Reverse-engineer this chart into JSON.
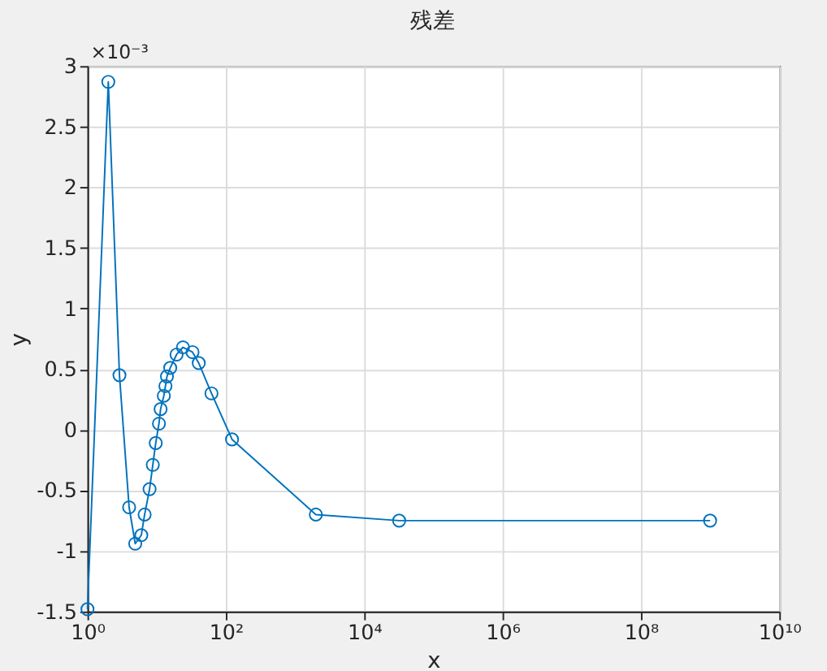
{
  "chart_data": {
    "type": "line",
    "title": "残差",
    "xlabel": "x",
    "ylabel": "y",
    "log": "x",
    "x": [
      1,
      2,
      2.9,
      4,
      4.9,
      6,
      6.7,
      7.9,
      8.8,
      9.7,
      10.8,
      11.4,
      12.7,
      13.4,
      14.1,
      15.7,
      19.4,
      24,
      33,
      40.6,
      62,
      123,
      2000,
      32000,
      1000000000
    ],
    "series": [
      {
        "color": "#0072bd",
        "values": [
          -1.48,
          2.87,
          0.45,
          -0.64,
          -0.94,
          -0.87,
          -0.7,
          -0.49,
          -0.29,
          -0.11,
          0.05,
          0.17,
          0.28,
          0.36,
          0.44,
          0.51,
          0.62,
          0.68,
          0.64,
          0.55,
          0.3,
          -0.08,
          -0.7,
          -0.75,
          -0.75
        ]
      }
    ],
    "xlim": [
      1,
      10000000000
    ],
    "xticks": [
      {
        "value": 1,
        "label": "10⁰"
      },
      {
        "value": 100,
        "label": "10²"
      },
      {
        "value": 10000,
        "label": "10⁴"
      },
      {
        "value": 1000000,
        "label": "10⁶"
      },
      {
        "value": 100000000,
        "label": "10⁸"
      },
      {
        "value": 10000000000,
        "label": "10¹⁰"
      }
    ],
    "ylim": [
      -1.5,
      3
    ],
    "yticks": [
      -1.5,
      -1,
      -0.5,
      0,
      0.5,
      1,
      1.5,
      2,
      2.5,
      3
    ],
    "annotations": [
      "×10⁻³"
    ],
    "grid": true,
    "marker": "circle",
    "line_style": "solid"
  }
}
